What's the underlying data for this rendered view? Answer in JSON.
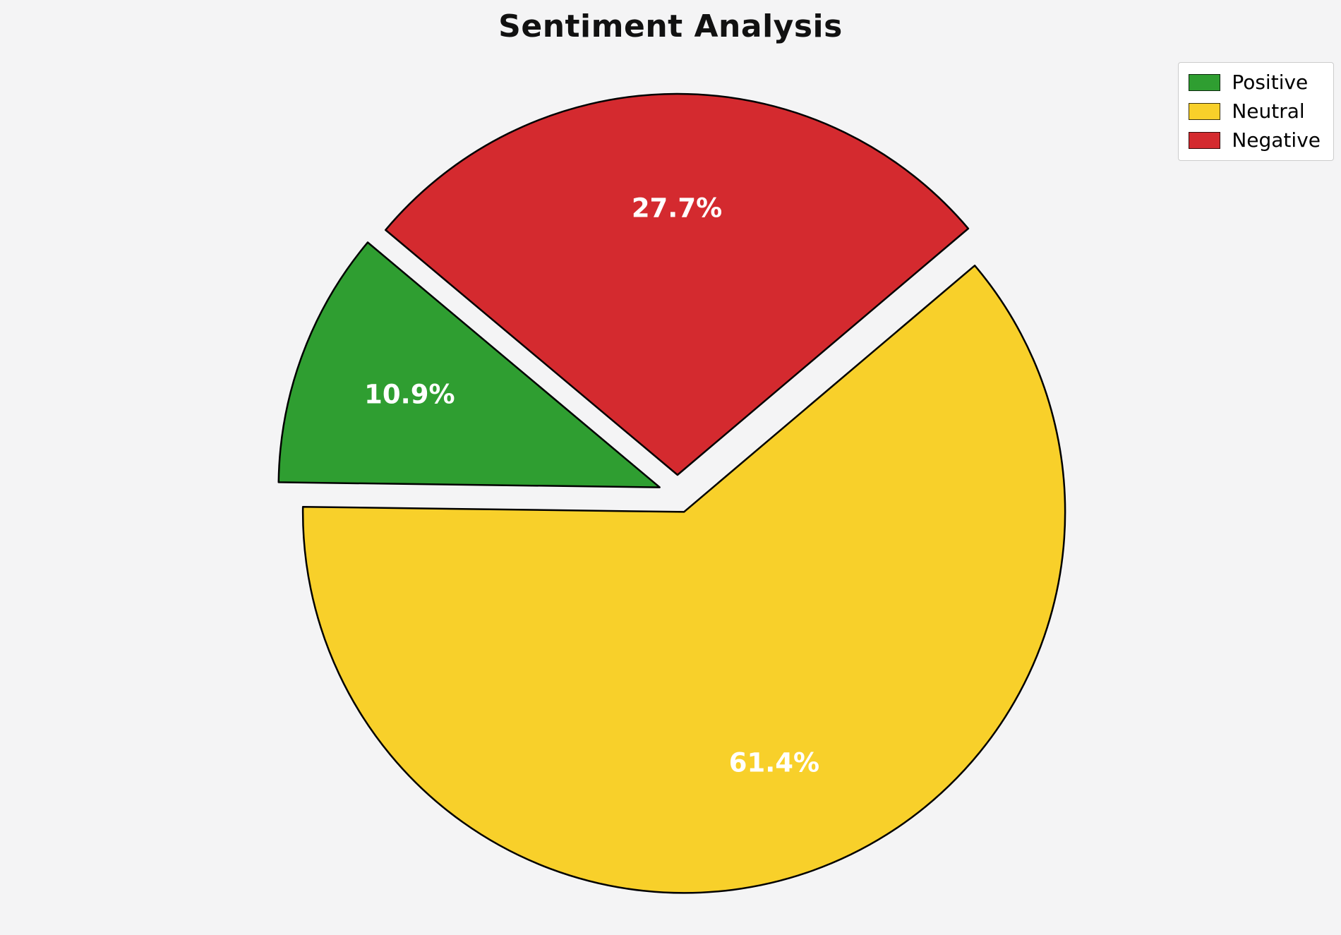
{
  "background_color": "#f4f4f5",
  "chart_data": {
    "type": "pie",
    "title": "Sentiment Analysis",
    "labels": [
      "Positive",
      "Neutral",
      "Negative"
    ],
    "values": [
      10.9,
      61.4,
      27.7
    ],
    "percent_labels": [
      "10.9%",
      "61.4%",
      "27.7%"
    ],
    "colors": [
      "#2f9e31",
      "#f8d02a",
      "#d42a2f"
    ],
    "edge_color": "#000000",
    "label_color": "#ffffff",
    "start_angle": 140,
    "direction": "counterclockwise",
    "explode": 0.05,
    "pct_distance": 0.7,
    "legend_position": "upper right",
    "legend_entries": [
      "Positive",
      "Neutral",
      "Negative"
    ]
  }
}
